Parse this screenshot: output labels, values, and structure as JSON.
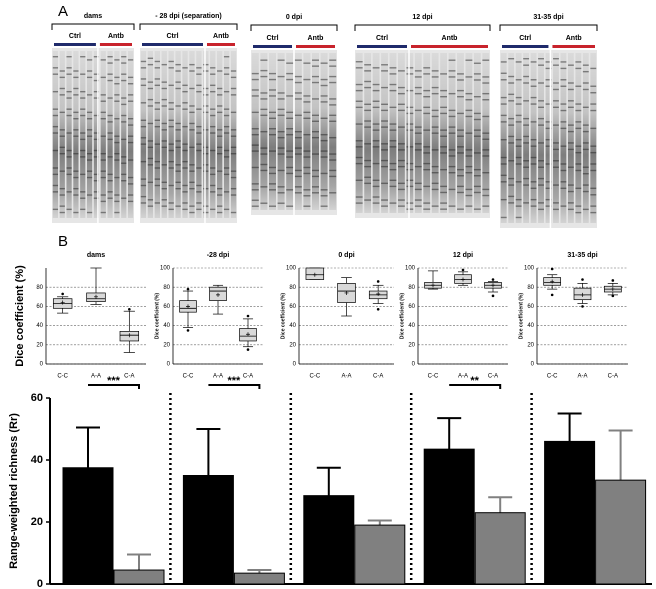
{
  "panel_labels": [
    "A",
    "B"
  ],
  "gels": [
    {
      "title": "dams",
      "groups": [
        "Ctrl",
        "Antb"
      ]
    },
    {
      "title": "- 28 dpi (separation)",
      "groups": [
        "Ctrl",
        "Antb"
      ]
    },
    {
      "title": "0 dpi",
      "groups": [
        "Ctrl",
        "Antb"
      ]
    },
    {
      "title": "12 dpi",
      "groups": [
        "Ctrl",
        "Antb"
      ]
    },
    {
      "title": "31-35 dpi",
      "groups": [
        "Ctrl",
        "Antb"
      ]
    }
  ],
  "chart_data": [
    {
      "type": "box",
      "title": "dams",
      "y_label": "Dice coefficient (%)",
      "categories": [
        "C-C",
        "A-A",
        "C-A"
      ],
      "ylim": [
        0,
        100
      ],
      "yticks": [
        0,
        20,
        40,
        60,
        80
      ],
      "grid": true,
      "boxes": [
        {
          "min": 53,
          "q1": 58,
          "median": 63,
          "q3": 68,
          "max": 70,
          "mean": 64,
          "outliers": [
            73
          ]
        },
        {
          "min": 62,
          "q1": 65,
          "median": 68,
          "q3": 74,
          "max": 100,
          "mean": 70,
          "outliers": []
        },
        {
          "min": 12,
          "q1": 24,
          "median": 30,
          "q3": 34,
          "max": 55,
          "mean": 30,
          "outliers": [
            57
          ]
        }
      ]
    },
    {
      "type": "box",
      "title": "-28 dpi",
      "y_label": "Dice coefficient (%)",
      "categories": [
        "C-C",
        "A-A",
        "C-A"
      ],
      "ylim": [
        0,
        100
      ],
      "yticks": [
        0,
        20,
        40,
        60,
        80,
        100
      ],
      "grid": true,
      "boxes": [
        {
          "min": 38,
          "q1": 54,
          "median": 58,
          "q3": 66,
          "max": 76,
          "mean": 60,
          "outliers": [
            78,
            35
          ]
        },
        {
          "min": 52,
          "q1": 66,
          "median": 76,
          "q3": 80,
          "max": 82,
          "mean": 72,
          "outliers": []
        },
        {
          "min": 18,
          "q1": 24,
          "median": 29,
          "q3": 37,
          "max": 47,
          "mean": 31,
          "outliers": [
            50,
            15
          ]
        }
      ]
    },
    {
      "type": "box",
      "title": "0 dpi",
      "y_label": "Dice coefficient (%)",
      "categories": [
        "C-C",
        "A-A",
        "C-A"
      ],
      "ylim": [
        0,
        100
      ],
      "yticks": [
        0,
        20,
        40,
        60,
        80,
        100
      ],
      "grid": true,
      "boxes": [
        {
          "min": 88,
          "q1": 88,
          "median": 93,
          "q3": 100,
          "max": 100,
          "mean": 93,
          "outliers": []
        },
        {
          "min": 50,
          "q1": 64,
          "median": 76,
          "q3": 84,
          "max": 90,
          "mean": 74,
          "outliers": []
        },
        {
          "min": 63,
          "q1": 68,
          "median": 72,
          "q3": 76,
          "max": 82,
          "mean": 73,
          "outliers": [
            86,
            57
          ]
        }
      ]
    },
    {
      "type": "box",
      "title": "12 dpi",
      "y_label": "Dice coefficient (%)",
      "categories": [
        "C-C",
        "A-A",
        "C-A"
      ],
      "ylim": [
        0,
        100
      ],
      "yticks": [
        0,
        20,
        40,
        60,
        80,
        100
      ],
      "grid": true,
      "boxes": [
        {
          "min": 78,
          "q1": 79,
          "median": 82,
          "q3": 85,
          "max": 97,
          "mean": 82,
          "outliers": []
        },
        {
          "min": 82,
          "q1": 84,
          "median": 88,
          "q3": 93,
          "max": 96,
          "mean": 88,
          "outliers": [
            98
          ]
        },
        {
          "min": 75,
          "q1": 79,
          "median": 82,
          "q3": 85,
          "max": 86,
          "mean": 82,
          "outliers": [
            71,
            88
          ]
        }
      ]
    },
    {
      "type": "box",
      "title": "31-35 dpi",
      "y_label": "Dice coefficient (%)",
      "categories": [
        "C-C",
        "A-A",
        "C-A"
      ],
      "ylim": [
        0,
        100
      ],
      "yticks": [
        0,
        20,
        40,
        60,
        80,
        100
      ],
      "grid": true,
      "boxes": [
        {
          "min": 78,
          "q1": 82,
          "median": 85,
          "q3": 90,
          "max": 93,
          "mean": 86,
          "outliers": [
            99,
            72
          ]
        },
        {
          "min": 63,
          "q1": 67,
          "median": 72,
          "q3": 79,
          "max": 84,
          "mean": 72,
          "outliers": [
            88,
            60
          ]
        },
        {
          "min": 72,
          "q1": 75,
          "median": 78,
          "q3": 81,
          "max": 84,
          "mean": 78,
          "outliers": [
            87,
            71
          ]
        }
      ]
    },
    {
      "type": "bar",
      "y_label": "Range-weighted richness (Rr)",
      "categories": [
        null,
        null,
        null,
        null,
        null
      ],
      "ylim": [
        0,
        60
      ],
      "yticks": [
        0,
        20,
        40,
        60
      ],
      "series": [
        {
          "color": "#000000",
          "values": [
            37.5,
            35,
            28.5,
            43.5,
            46
          ],
          "errors": [
            13,
            15,
            9,
            10,
            9
          ]
        },
        {
          "color": "#808080",
          "values": [
            4.5,
            3.5,
            19,
            23,
            33.5
          ],
          "errors": [
            5,
            1,
            1.5,
            5,
            16
          ]
        }
      ],
      "annotations": [
        {
          "text": "***",
          "category": 0
        },
        {
          "text": "***",
          "category": 1
        },
        {
          "text": "**",
          "category": 3
        }
      ]
    }
  ]
}
